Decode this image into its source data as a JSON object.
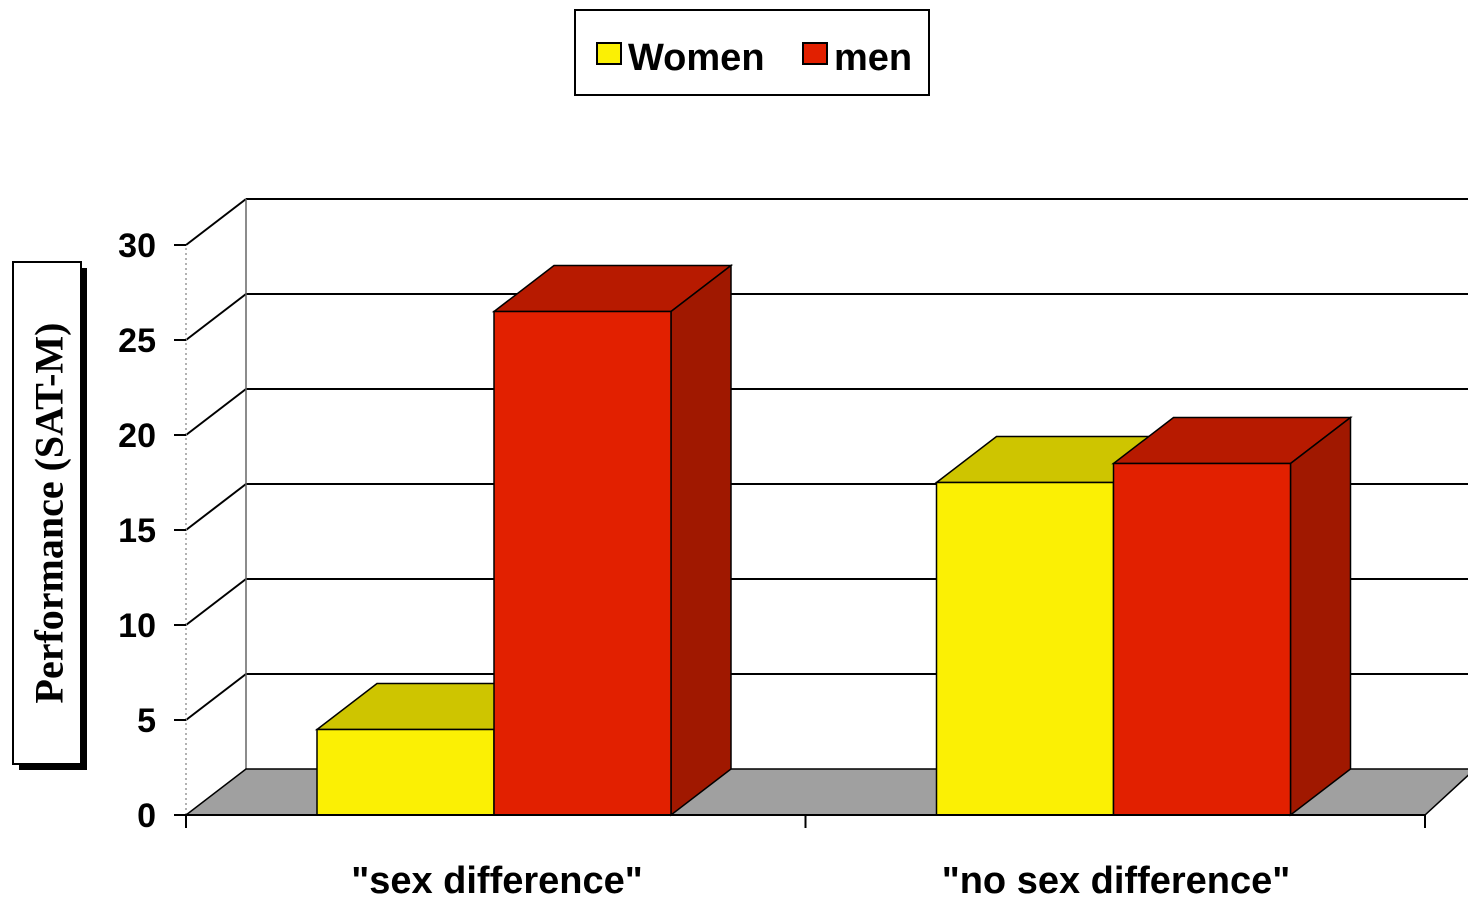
{
  "chart_data": {
    "type": "bar",
    "categories": [
      "\"sex difference\"",
      "\"no sex difference\""
    ],
    "series": [
      {
        "name": "Women",
        "values": [
          4.5,
          17.5
        ],
        "color": "#fbf004",
        "top_color": "#cec500"
      },
      {
        "name": "men",
        "values": [
          26.5,
          18.5
        ],
        "color": "#e22000",
        "top_color": "#b71a00",
        "side_color": "#a01800"
      }
    ],
    "ylabel": "Performance (SAT-M)",
    "xlabel": "",
    "ylim": [
      0,
      30
    ],
    "yticks": [
      "0",
      "5",
      "10",
      "15",
      "20",
      "25",
      "30"
    ],
    "grid": true,
    "legend_position": "top",
    "floor_color": "#a0a0a0"
  }
}
